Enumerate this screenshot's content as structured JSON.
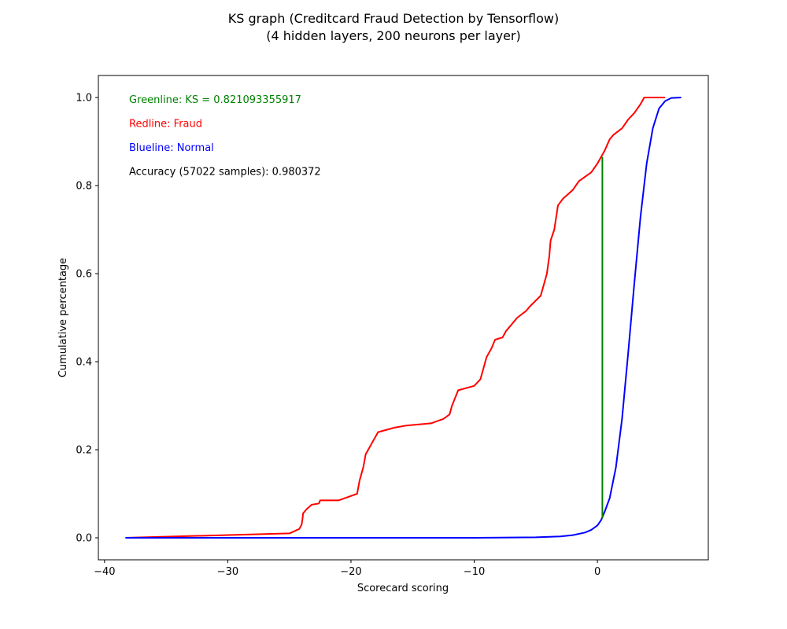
{
  "chart_data": {
    "type": "line",
    "title": "KS graph (Creditcard Fraud Detection by Tensorflow)",
    "subtitle": "(4 hidden layers, 200 neurons per layer)",
    "xlabel": "Scorecard scoring",
    "ylabel": "Cumulative percentage",
    "xlim": [
      -40.5,
      9.0
    ],
    "ylim": [
      -0.05,
      1.05
    ],
    "x_ticks": [
      -40,
      -30,
      -20,
      -10,
      0
    ],
    "x_tick_labels": [
      "−40",
      "−30",
      "−20",
      "−10",
      "0"
    ],
    "y_ticks": [
      0.0,
      0.2,
      0.4,
      0.6,
      0.8,
      1.0
    ],
    "y_tick_labels": [
      "0.0",
      "0.2",
      "0.4",
      "0.6",
      "0.8",
      "1.0"
    ],
    "grid": false,
    "legend": "none",
    "annotations": [
      {
        "text": "Greenline: KS = 0.821093355917",
        "color": "#008000"
      },
      {
        "text": "Redline: Fraud",
        "color": "#ff0000"
      },
      {
        "text": "Blueline: Normal",
        "color": "#0000ff"
      },
      {
        "text": "Accuracy (57022 samples): 0.980372",
        "color": "#000000"
      }
    ],
    "series": [
      {
        "color": "#ff0000",
        "x": [
          -38.3,
          -25.0,
          -24.2,
          -24.0,
          -23.9,
          -23.9,
          -23.6,
          -23.2,
          -22.6,
          -22.5,
          -21.0,
          -19.5,
          -19.3,
          -19.0,
          -18.8,
          -18.6,
          -18.2,
          -17.8,
          -16.5,
          -15.5,
          -13.5,
          -12.5,
          -12.0,
          -11.8,
          -11.3,
          -10.0,
          -9.5,
          -9.2,
          -9.0,
          -8.6,
          -8.3,
          -7.7,
          -7.4,
          -6.8,
          -6.5,
          -5.8,
          -5.5,
          -4.6,
          -4.3,
          -4.1,
          -3.9,
          -3.8,
          -3.5,
          -3.2,
          -2.8,
          -2.4,
          -2.0,
          -1.5,
          -1.0,
          -0.5,
          0.0,
          0.3,
          0.6,
          1.0,
          1.3,
          2.0,
          2.5,
          3.0,
          3.5,
          3.8,
          4.3,
          5.5
        ],
        "y": [
          0.0,
          0.01,
          0.02,
          0.03,
          0.05,
          0.055,
          0.065,
          0.075,
          0.078,
          0.085,
          0.085,
          0.1,
          0.13,
          0.16,
          0.19,
          0.2,
          0.22,
          0.24,
          0.25,
          0.255,
          0.26,
          0.27,
          0.28,
          0.3,
          0.335,
          0.345,
          0.36,
          0.39,
          0.41,
          0.43,
          0.45,
          0.455,
          0.47,
          0.49,
          0.5,
          0.515,
          0.525,
          0.55,
          0.58,
          0.6,
          0.64,
          0.675,
          0.7,
          0.755,
          0.77,
          0.78,
          0.79,
          0.81,
          0.82,
          0.83,
          0.85,
          0.865,
          0.88,
          0.905,
          0.915,
          0.93,
          0.95,
          0.965,
          0.985,
          1.0,
          1.0,
          1.0
        ]
      },
      {
        "color": "#0000ff",
        "x": [
          -38.3,
          -30.0,
          -20.0,
          -10.0,
          -5.0,
          -3.0,
          -2.0,
          -1.0,
          -0.5,
          0.0,
          0.3,
          0.6,
          1.0,
          1.5,
          2.0,
          2.5,
          3.0,
          3.5,
          4.0,
          4.5,
          5.0,
          5.5,
          6.0,
          6.8
        ],
        "y": [
          0.0,
          0.0,
          0.0,
          0.0,
          0.001,
          0.003,
          0.006,
          0.012,
          0.018,
          0.028,
          0.04,
          0.06,
          0.09,
          0.16,
          0.27,
          0.42,
          0.58,
          0.73,
          0.85,
          0.93,
          0.975,
          0.992,
          0.999,
          1.0
        ]
      },
      {
        "color": "#008000",
        "x": [
          0.4,
          0.4
        ],
        "y": [
          0.044,
          0.865
        ]
      }
    ]
  }
}
